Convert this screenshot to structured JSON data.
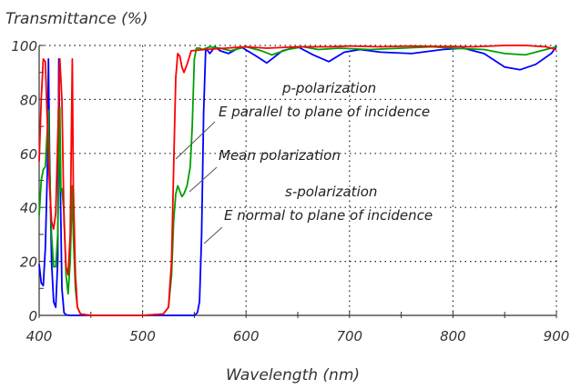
{
  "chart_data": {
    "type": "line",
    "title": "Transmittance (%)",
    "xlabel": "Wavelength (nm)",
    "ylabel": "Transmittance (%)",
    "xlim": [
      400,
      900
    ],
    "ylim": [
      0,
      100
    ],
    "grid": true,
    "x_ticks": [
      "400",
      "500",
      "600",
      "700",
      "800",
      "900"
    ],
    "y_ticks": [
      "0",
      "20",
      "40",
      "60",
      "80",
      "100"
    ],
    "x_tick_values": [
      400,
      500,
      600,
      700,
      800,
      900
    ],
    "y_tick_values": [
      0,
      20,
      40,
      60,
      80,
      100
    ],
    "annotations": [
      {
        "text": "p-polarization",
        "id": "p1"
      },
      {
        "text": "E parallel to plane of incidence",
        "id": "p2"
      },
      {
        "text": "Mean polarization",
        "id": "m1"
      },
      {
        "text": "s-polarization",
        "id": "s1"
      },
      {
        "text": "E normal to plane of incidence",
        "id": "s2"
      }
    ],
    "series": [
      {
        "name": "p-polarization",
        "color": "#ff0000",
        "points": [
          [
            400,
            57
          ],
          [
            402,
            80
          ],
          [
            404,
            95
          ],
          [
            406,
            94
          ],
          [
            408,
            70
          ],
          [
            410,
            48
          ],
          [
            412,
            35
          ],
          [
            414,
            32
          ],
          [
            416,
            38
          ],
          [
            418,
            65
          ],
          [
            420,
            95
          ],
          [
            422,
            80
          ],
          [
            424,
            35
          ],
          [
            426,
            18
          ],
          [
            428,
            15
          ],
          [
            430,
            30
          ],
          [
            432,
            95
          ],
          [
            433,
            48
          ],
          [
            435,
            15
          ],
          [
            437,
            3
          ],
          [
            440,
            0.5
          ],
          [
            450,
            0
          ],
          [
            500,
            0
          ],
          [
            520,
            0.5
          ],
          [
            525,
            3
          ],
          [
            528,
            20
          ],
          [
            530,
            55
          ],
          [
            532,
            88
          ],
          [
            534,
            97
          ],
          [
            536,
            96
          ],
          [
            538,
            92
          ],
          [
            540,
            90
          ],
          [
            543,
            93
          ],
          [
            547,
            98
          ],
          [
            560,
            98.5
          ],
          [
            580,
            99
          ],
          [
            600,
            99.5
          ],
          [
            620,
            99
          ],
          [
            650,
            99.5
          ],
          [
            680,
            99.5
          ],
          [
            700,
            99.8
          ],
          [
            730,
            99.5
          ],
          [
            760,
            99.8
          ],
          [
            790,
            99.6
          ],
          [
            820,
            99.5
          ],
          [
            850,
            100
          ],
          [
            870,
            100
          ],
          [
            890,
            99.5
          ],
          [
            900,
            98.5
          ]
        ]
      },
      {
        "name": "Mean polarization",
        "color": "#00a000",
        "points": [
          [
            400,
            37
          ],
          [
            402,
            50
          ],
          [
            404,
            54
          ],
          [
            406,
            55
          ],
          [
            408,
            70
          ],
          [
            409,
            76
          ],
          [
            410,
            55
          ],
          [
            412,
            30
          ],
          [
            414,
            18
          ],
          [
            416,
            18
          ],
          [
            418,
            30
          ],
          [
            420,
            77
          ],
          [
            421,
            46
          ],
          [
            422,
            47
          ],
          [
            424,
            38
          ],
          [
            426,
            15
          ],
          [
            428,
            8
          ],
          [
            430,
            20
          ],
          [
            432,
            48
          ],
          [
            433,
            30
          ],
          [
            435,
            10
          ],
          [
            437,
            3
          ],
          [
            440,
            0.5
          ],
          [
            450,
            0
          ],
          [
            500,
            0
          ],
          [
            520,
            0.5
          ],
          [
            525,
            3
          ],
          [
            528,
            15
          ],
          [
            530,
            35
          ],
          [
            532,
            45
          ],
          [
            534,
            48
          ],
          [
            536,
            46
          ],
          [
            538,
            44
          ],
          [
            540,
            45
          ],
          [
            543,
            48
          ],
          [
            546,
            55
          ],
          [
            548,
            70
          ],
          [
            550,
            95
          ],
          [
            552,
            99
          ],
          [
            555,
            99
          ],
          [
            558,
            98.5
          ],
          [
            565,
            99.5
          ],
          [
            575,
            99
          ],
          [
            585,
            98
          ],
          [
            600,
            99.5
          ],
          [
            615,
            98
          ],
          [
            625,
            96.5
          ],
          [
            640,
            98.5
          ],
          [
            655,
            99.5
          ],
          [
            670,
            98.5
          ],
          [
            690,
            99
          ],
          [
            720,
            98.5
          ],
          [
            750,
            99
          ],
          [
            780,
            99.5
          ],
          [
            800,
            99
          ],
          [
            830,
            98.5
          ],
          [
            850,
            97
          ],
          [
            870,
            96.5
          ],
          [
            885,
            98
          ],
          [
            900,
            99.5
          ]
        ]
      },
      {
        "name": "s-polarization",
        "color": "#0000ff",
        "points": [
          [
            400,
            19
          ],
          [
            402,
            12
          ],
          [
            404,
            11
          ],
          [
            406,
            25
          ],
          [
            408,
            55
          ],
          [
            409,
            95
          ],
          [
            410,
            60
          ],
          [
            412,
            20
          ],
          [
            414,
            5
          ],
          [
            416,
            3
          ],
          [
            418,
            20
          ],
          [
            419,
            95
          ],
          [
            420,
            60
          ],
          [
            422,
            10
          ],
          [
            424,
            1
          ],
          [
            426,
            0.2
          ],
          [
            430,
            0
          ],
          [
            500,
            0
          ],
          [
            550,
            0
          ],
          [
            553,
            1
          ],
          [
            555,
            5
          ],
          [
            557,
            30
          ],
          [
            559,
            75
          ],
          [
            561,
            99
          ],
          [
            563,
            98
          ],
          [
            565,
            97
          ],
          [
            570,
            99.5
          ],
          [
            575,
            98
          ],
          [
            583,
            97
          ],
          [
            595,
            99.5
          ],
          [
            610,
            96
          ],
          [
            620,
            93.5
          ],
          [
            635,
            98
          ],
          [
            650,
            99.5
          ],
          [
            665,
            96.5
          ],
          [
            680,
            94
          ],
          [
            695,
            97.5
          ],
          [
            710,
            98.5
          ],
          [
            730,
            97.5
          ],
          [
            760,
            97
          ],
          [
            790,
            98.5
          ],
          [
            810,
            99
          ],
          [
            830,
            97
          ],
          [
            850,
            92
          ],
          [
            865,
            91
          ],
          [
            880,
            93
          ],
          [
            895,
            97
          ],
          [
            900,
            99.5
          ]
        ]
      }
    ]
  }
}
